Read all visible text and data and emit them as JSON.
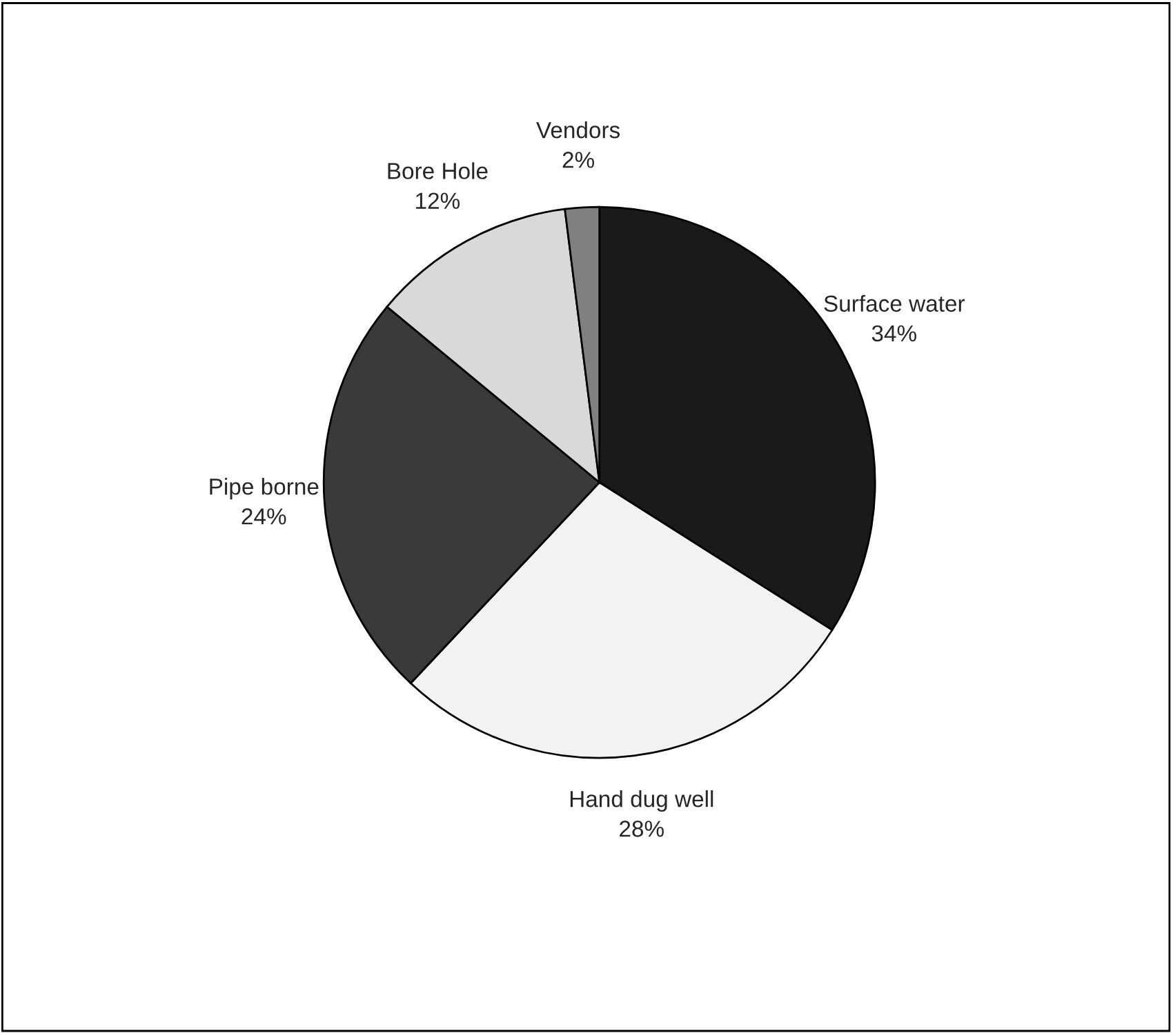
{
  "chart_data": {
    "type": "pie",
    "categories": [
      "Surface water",
      "Hand dug well",
      "Pipe borne",
      "Bore Hole",
      "Vendors"
    ],
    "values": [
      34,
      28,
      24,
      12,
      2
    ],
    "value_labels": [
      "34%",
      "28%",
      "24%",
      "12%",
      "2%"
    ],
    "colors": [
      "#1a1a1a",
      "#f2f2f2",
      "#3a3a3a",
      "#d9d9d9",
      "#808080"
    ],
    "legend": false
  }
}
